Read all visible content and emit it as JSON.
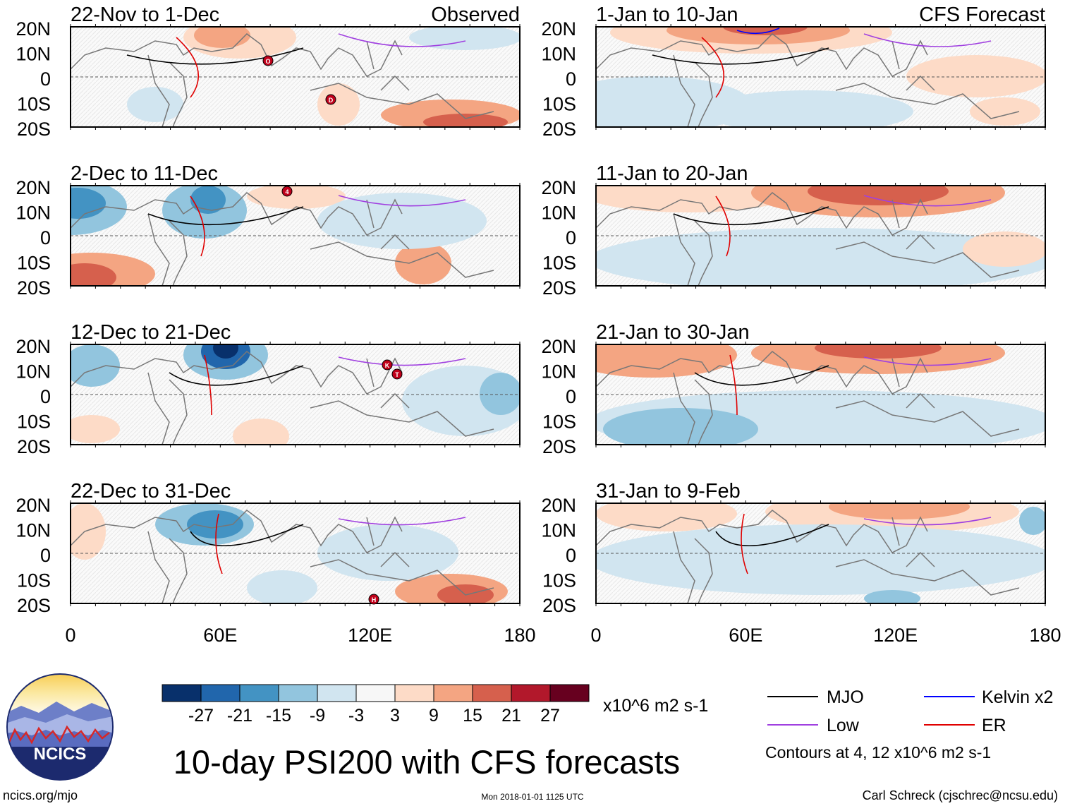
{
  "title": "10-day PSI200 with CFS forecasts",
  "left_column_label": "Observed",
  "right_column_label": "CFS Forecast",
  "lat_labels": [
    "20N",
    "10N",
    "0",
    "10S",
    "20S"
  ],
  "lon_labels": [
    "0",
    "60E",
    "120E",
    "180"
  ],
  "panels_left": [
    {
      "period": "22-Nov to 1-Dec"
    },
    {
      "period": "2-Dec to 11-Dec"
    },
    {
      "period": "12-Dec to 21-Dec"
    },
    {
      "period": "22-Dec to 31-Dec"
    }
  ],
  "panels_right": [
    {
      "period": "1-Jan to 10-Jan"
    },
    {
      "period": "11-Jan to 20-Jan"
    },
    {
      "period": "21-Jan to 30-Jan"
    },
    {
      "period": "31-Jan to 9-Feb"
    }
  ],
  "colorbar": {
    "colors": [
      "#08306b",
      "#2166ac",
      "#4393c3",
      "#92c5de",
      "#d1e5f0",
      "#f7f7f7",
      "#fddbc7",
      "#f4a582",
      "#d6604d",
      "#b2182b",
      "#67001f"
    ],
    "ticks": [
      "-27",
      "-21",
      "-15",
      "-9",
      "-3",
      "3",
      "9",
      "15",
      "21",
      "27"
    ],
    "units": "x10^6 m2 s-1"
  },
  "legend": {
    "items": [
      {
        "label": "MJO",
        "color": "#000000"
      },
      {
        "label": "Kelvin x2",
        "color": "#0000ff"
      },
      {
        "label": "Low",
        "color": "#a040e0"
      },
      {
        "label": "ER",
        "color": "#e00000"
      }
    ],
    "note": "Contours at 4, 12 x10^6 m2 s-1"
  },
  "logo_text": "NCICS",
  "footer": {
    "left": "ncics.org/mjo",
    "center": "Mon 2018-01-01 1125 UTC",
    "right": "Carl Schreck (cjschrec@ncsu.edu)"
  },
  "storm_markers": [
    {
      "letter": "O"
    },
    {
      "letter": "D"
    },
    {
      "letter": "4"
    },
    {
      "letter": "K"
    },
    {
      "letter": "T"
    },
    {
      "letter": "H"
    }
  ]
}
